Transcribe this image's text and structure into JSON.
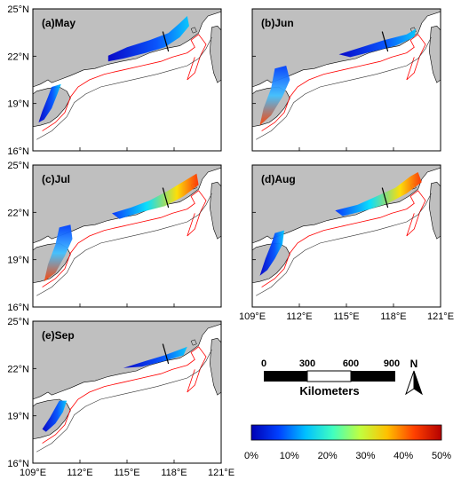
{
  "panels": [
    {
      "id": "may",
      "label": "(a)May"
    },
    {
      "id": "jun",
      "label": "(b)Jun"
    },
    {
      "id": "jul",
      "label": "(c)Jul"
    },
    {
      "id": "aug",
      "label": "(d)Aug"
    },
    {
      "id": "sep",
      "label": "(e)Sep"
    }
  ],
  "lat_ticks": [
    "25°N",
    "22°N",
    "19°N",
    "16°N"
  ],
  "lon_ticks": [
    "109°E",
    "112°E",
    "115°E",
    "118°E",
    "121°E"
  ],
  "scale_bar": {
    "labels": [
      "0",
      "300",
      "600",
      "900"
    ],
    "unit": "Kilometers"
  },
  "north_arrow": {
    "label": "N"
  },
  "colorbar": {
    "ticks": [
      "0%",
      "10%",
      "20%",
      "30%",
      "40%",
      "50%"
    ],
    "colors": [
      "#0000b4",
      "#0040ff",
      "#00c0ff",
      "#40ffc0",
      "#c0ff40",
      "#ffc000",
      "#ff4000",
      "#b40000"
    ]
  },
  "colors": {
    "land": "#bfbfbf",
    "contour_red": "#ff0000",
    "contour_black": "#333333"
  }
}
